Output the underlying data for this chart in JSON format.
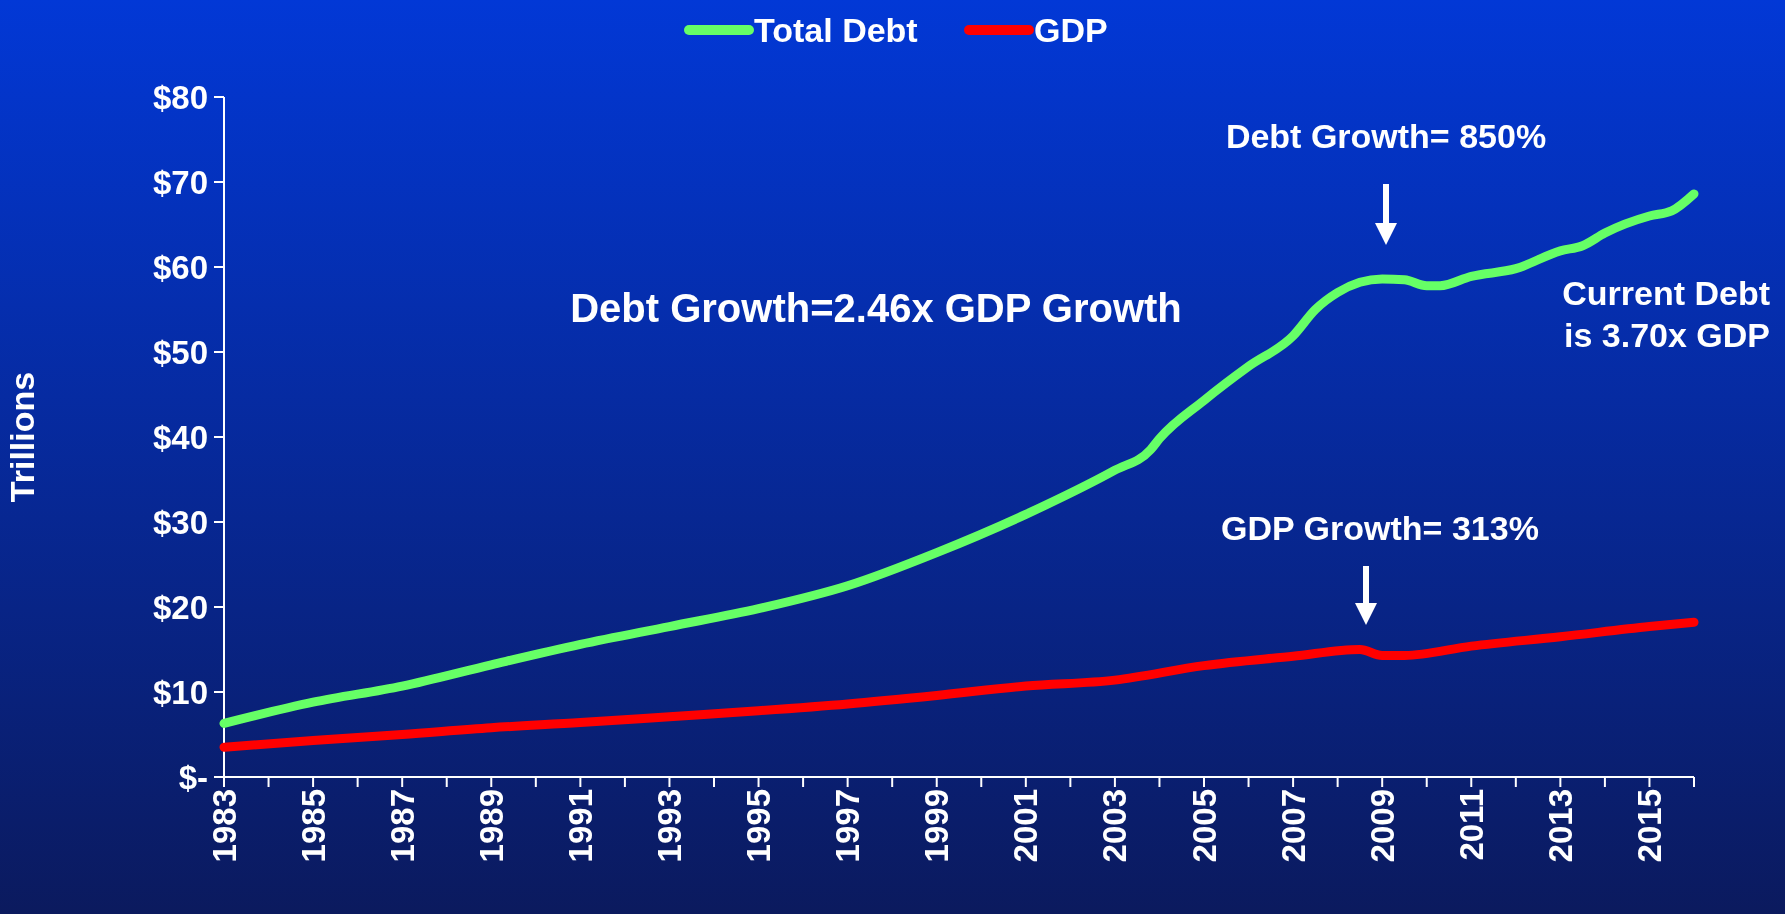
{
  "chart_data": {
    "type": "line",
    "ylabel": "Trillions",
    "legend": "top",
    "grid": false,
    "line_style": "solid",
    "marker": "none",
    "xlim": [
      1983,
      2016
    ],
    "xticks": [
      1983,
      {
        "value": 1984,
        "label": null
      },
      1985,
      {
        "value": 1986,
        "label": null
      },
      1987,
      {
        "value": 1988,
        "label": null
      },
      1989,
      {
        "value": 1990,
        "label": null
      },
      1991,
      {
        "value": 1992,
        "label": null
      },
      1993,
      {
        "value": 1994,
        "label": null
      },
      1995,
      {
        "value": 1996,
        "label": null
      },
      1997,
      {
        "value": 1998,
        "label": null
      },
      1999,
      {
        "value": 2000,
        "label": null
      },
      2001,
      {
        "value": 2002,
        "label": null
      },
      2003,
      {
        "value": 2004,
        "label": null
      },
      2005,
      {
        "value": 2006,
        "label": null
      },
      2007,
      {
        "value": 2008,
        "label": null
      },
      2009,
      {
        "value": 2010,
        "label": null
      },
      2011,
      {
        "value": 2012,
        "label": null
      },
      2013,
      {
        "value": 2014,
        "label": null
      },
      2015,
      {
        "value": 2016,
        "label": null
      }
    ],
    "ylim": [
      0,
      80
    ],
    "yticks": [
      {
        "value": 0,
        "label": "$-"
      },
      {
        "value": 10,
        "label": "$10"
      },
      {
        "value": 20,
        "label": "$20"
      },
      {
        "value": 30,
        "label": "$30"
      },
      {
        "value": 40,
        "label": "$40"
      },
      {
        "value": 50,
        "label": "$50"
      },
      {
        "value": 60,
        "label": "$60"
      },
      {
        "value": 70,
        "label": "$70"
      },
      {
        "value": 80,
        "label": "$80"
      }
    ],
    "series": [
      {
        "name": "Total Debt",
        "color": "#66ff66",
        "x": [
          1983,
          1985,
          1987,
          1989,
          1991,
          1993,
          1995,
          1997,
          1999,
          2001,
          2003,
          2003.8,
          2004,
          2005,
          2006,
          2007,
          2007.5,
          2008,
          2008.5,
          2009,
          2009.5,
          2010,
          2010.3,
          2011,
          2012,
          2013,
          2013.5,
          2014,
          2015,
          2015.5,
          2016
        ],
        "values": [
          6.3,
          8.8,
          10.7,
          13.2,
          15.6,
          17.7,
          19.8,
          22.5,
          26.4,
          30.9,
          36.1,
          38.5,
          39.8,
          44.3,
          48.3,
          51.9,
          55,
          57,
          58.2,
          58.6,
          58.5,
          57.8,
          57.8,
          58.9,
          59.8,
          61.9,
          62.5,
          64,
          66,
          66.6,
          68.6
        ]
      },
      {
        "name": "GDP",
        "color": "#ff0000",
        "x": [
          1983,
          1985,
          1987,
          1989,
          1991,
          1993,
          1995,
          1997,
          1999,
          2001,
          2003,
          2005,
          2007,
          2008.5,
          2009,
          2009.5,
          2011,
          2013,
          2015,
          2016
        ],
        "values": [
          3.5,
          4.3,
          5.0,
          5.8,
          6.4,
          7.1,
          7.8,
          8.6,
          9.6,
          10.7,
          11.4,
          13.1,
          14.2,
          15.0,
          14.3,
          14.3,
          15.4,
          16.5,
          17.7,
          18.2
        ]
      }
    ],
    "annotations": [
      "Debt Growth=2.46x GDP Growth",
      "Current Debt\nis 3.70x GDP",
      "Debt Growth= 850%",
      "GDP Growth= 313%"
    ]
  }
}
